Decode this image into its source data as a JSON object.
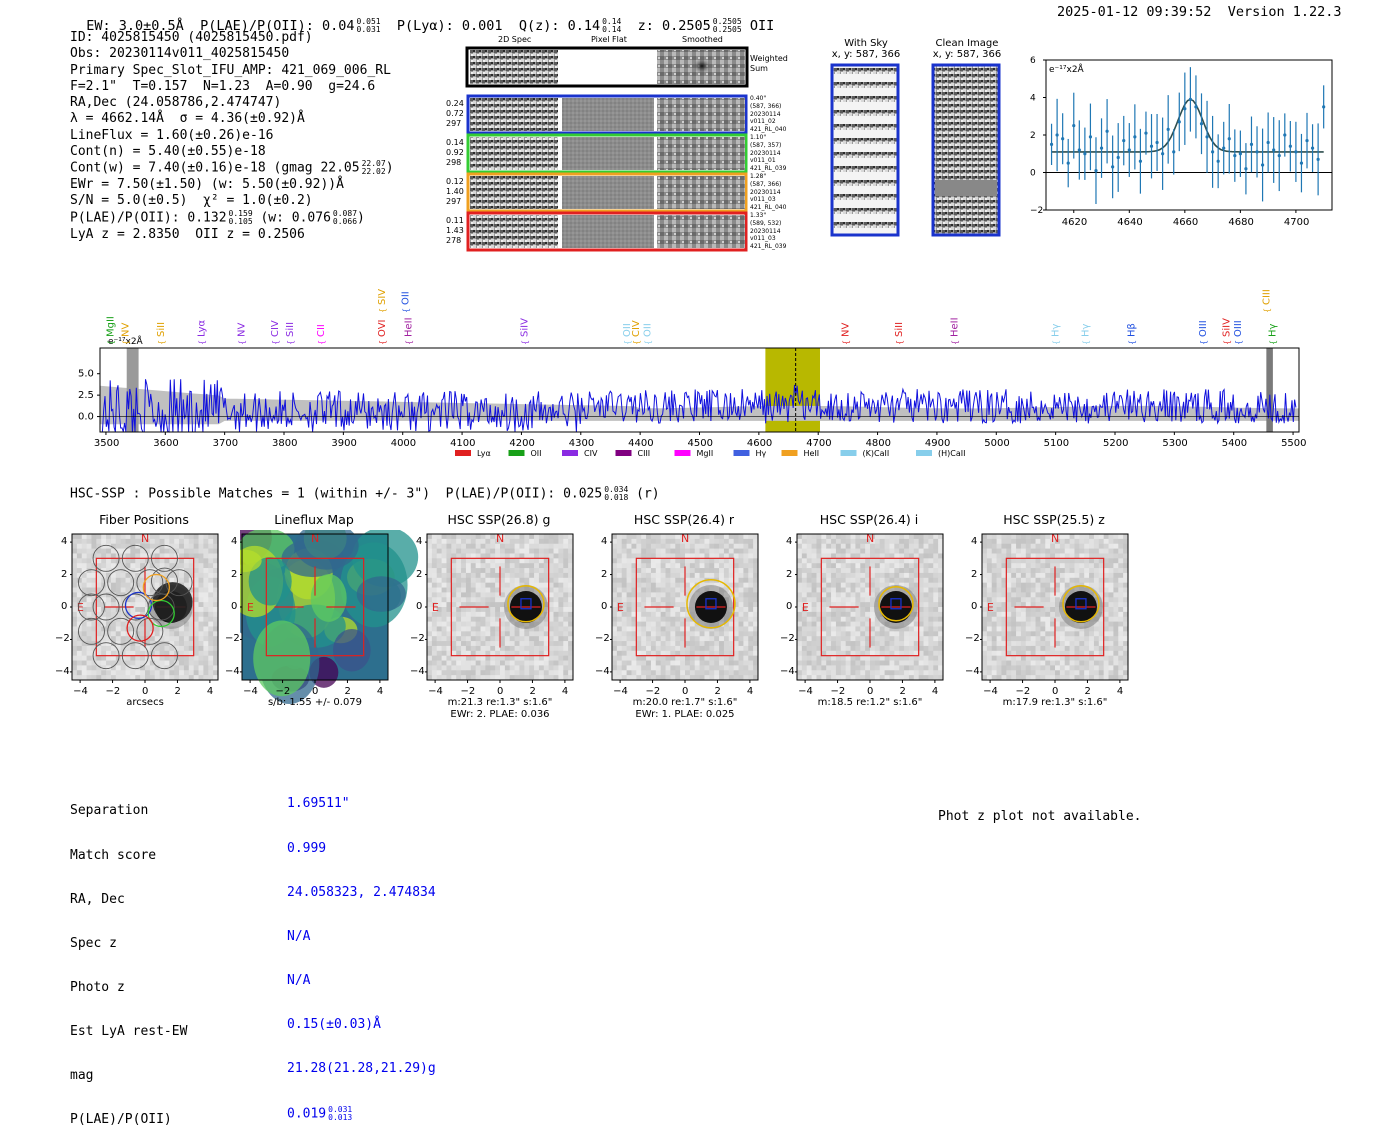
{
  "header": {
    "ew": "EW: 3.0±0.5Å",
    "plae_label": "P(LAE)/P(OII): 0.04",
    "plae_hi": "0.051",
    "plae_lo": "0.031",
    "plya": "P(Lyα): 0.001",
    "qz_label": "Q(z): 0.14",
    "qz_hi": "0.14",
    "qz_lo": "0.14",
    "z_label": "z: 0.2505",
    "z_hi": "0.2505",
    "z_lo": "0.2505",
    "z_line": "OII",
    "timestamp": "2025-01-12 09:39:52",
    "version": "Version 1.22.3"
  },
  "info": {
    "id": "ID: 4025815450 (4025815450.pdf)",
    "obs": "Obs: 20230114v011_4025815450",
    "primary": "Primary Spec_Slot_IFU_AMP: 421_069_006_RL",
    "fiber": "F=2.1\"  T=0.157  N=1.23  A=0.90  g=24.6",
    "radec": "RA,Dec (24.058786,2.474747)",
    "lambda": "λ = 4662.14Å  σ = 4.36(±0.92)Å",
    "lineflux": "LineFlux = 1.60(±0.26)e-16",
    "contn": "Cont(n) = 5.40(±0.55)e-18",
    "contw": "Cont(w) = 7.40(±0.16)e-18 (gmag 22.05",
    "contw_hi": "22.07",
    "contw_lo": "22.02",
    "ewr": "EWr = 7.50(±1.50) (w: 5.50(±0.92))Å",
    "sn": "S/N = 5.0(±0.5)  χ² = 1.0(±0.2)",
    "plae": "P(LAE)/P(OII): 0.132",
    "plae_hi": "0.159",
    "plae_lo": "0.105",
    "plae_w": "(w: 0.076",
    "plae_w_hi": "0.087",
    "plae_w_lo": "0.066",
    "lyaz": "LyA z = 2.8350  OII z = 0.2506"
  },
  "cutouts": {
    "col_2d": "2D Spec",
    "col_flat": "Pixel Flat",
    "col_smooth": "Smoothed",
    "weighted": "Weighted Sum",
    "rows": [
      {
        "left": [
          "0.24",
          "0.72",
          "297"
        ],
        "right": [
          "0.40\"",
          "(587, 366)",
          "20230114",
          "v011_02",
          "421_RL_040"
        ],
        "color": "#1a33cc"
      },
      {
        "left": [
          "0.14",
          "0.92",
          "298"
        ],
        "right": [
          "1.10\"",
          "(587, 357)",
          "20230114",
          "v011_01",
          "421_RL_039"
        ],
        "color": "#33cc33"
      },
      {
        "left": [
          "0.12",
          "1.40",
          "297"
        ],
        "right": [
          "1.28\"",
          "(587, 366)",
          "20230114",
          "v011_03",
          "421_RL_040"
        ],
        "color": "#f0a020"
      },
      {
        "left": [
          "0.11",
          "1.43",
          "278"
        ],
        "right": [
          "1.33\"",
          "(589, 532)",
          "20230114",
          "v011_03",
          "421_RL_039"
        ],
        "color": "#e02020"
      }
    ],
    "with_sky_title": "With Sky",
    "with_sky_xy": "x, y: 587, 366",
    "clean_title": "Clean Image",
    "clean_xy": "x, y: 587, 366"
  },
  "fit_plot": {
    "unit": "e⁻¹⁷x2Å",
    "x_ticks": [
      "4620",
      "4640",
      "4660",
      "4680",
      "4700"
    ],
    "y_ticks": [
      "6",
      "4",
      "2",
      "0",
      "−2"
    ],
    "data_x": [
      4612,
      4614,
      4616,
      4618,
      4620,
      4622,
      4624,
      4626,
      4628,
      4630,
      4632,
      4634,
      4636,
      4638,
      4640,
      4642,
      4644,
      4646,
      4648,
      4650,
      4652,
      4654,
      4656,
      4658,
      4660,
      4662,
      4664,
      4666,
      4668,
      4670,
      4672,
      4674,
      4676,
      4678,
      4680,
      4682,
      4684,
      4686,
      4688,
      4690,
      4692,
      4694,
      4696,
      4698,
      4700,
      4702,
      4704,
      4706,
      4708,
      4710
    ],
    "data_y": [
      1.5,
      2.0,
      1.8,
      0.5,
      2.5,
      1.2,
      1.0,
      1.9,
      0.1,
      1.3,
      2.2,
      0.3,
      0.8,
      1.7,
      1.2,
      1.9,
      0.6,
      2.1,
      1.4,
      1.6,
      1.0,
      2.3,
      1.1,
      2.7,
      3.4,
      3.9,
      3.5,
      2.6,
      1.9,
      1.1,
      0.6,
      1.3,
      1.8,
      0.9,
      1.0,
      0.2,
      1.5,
      1.1,
      0.4,
      1.6,
      1.2,
      0.9,
      2.0,
      1.4,
      1.1,
      0.5,
      1.7,
      1.3,
      0.7,
      3.5
    ],
    "xlim": [
      4610,
      4713
    ],
    "ylim": [
      -2,
      6
    ]
  },
  "spectrum": {
    "unit": "e⁻¹⁷x2Å",
    "x_ticks": [
      "3500",
      "3600",
      "3700",
      "3800",
      "3900",
      "4000",
      "4100",
      "4200",
      "4300",
      "4400",
      "4500",
      "4600",
      "4700",
      "4800",
      "4900",
      "5000",
      "5100",
      "5200",
      "5300",
      "5400",
      "5500"
    ],
    "y_ticks": [
      "5.0",
      "2.5",
      "0.0"
    ],
    "xlim": [
      3490,
      5510
    ],
    "ylim": [
      -1.8,
      8.0
    ],
    "lines": [
      {
        "name": "MgII",
        "x": 3508,
        "color": "#18a018",
        "row": 1
      },
      {
        "name": "NV",
        "x": 3533,
        "color": "#e0a000",
        "row": 1
      },
      {
        "name": "SiII",
        "x": 3593,
        "color": "#e0a000",
        "row": 1
      },
      {
        "name": "Lyα",
        "x": 3661,
        "color": "#8a2be2",
        "row": 1
      },
      {
        "name": "NV",
        "x": 3728,
        "color": "#8a2be2",
        "row": 1
      },
      {
        "name": "CIV",
        "x": 3785,
        "color": "#8a2be2",
        "row": 1
      },
      {
        "name": "SiII",
        "x": 3810,
        "color": "#8a2be2",
        "row": 1
      },
      {
        "name": "CII",
        "x": 3862,
        "color": "#ff00ff",
        "row": 1
      },
      {
        "name": "OVI",
        "x": 3965,
        "color": "#e02020",
        "row": 1
      },
      {
        "name": "SIV",
        "x": 3965,
        "color": "#e0a000",
        "row": 0
      },
      {
        "name": "OII",
        "x": 4005,
        "color": "#2050e0",
        "row": 0
      },
      {
        "name": "HeII",
        "x": 4010,
        "color": "#a020a0",
        "row": 1
      },
      {
        "name": "SiIV",
        "x": 4205,
        "color": "#8a2be2",
        "row": 1
      },
      {
        "name": "OII",
        "x": 4378,
        "color": "#87ceeb",
        "row": 1
      },
      {
        "name": "CIV",
        "x": 4393,
        "color": "#e0a000",
        "row": 1
      },
      {
        "name": "OII",
        "x": 4412,
        "color": "#87ceeb",
        "row": 1
      },
      {
        "name": "NV",
        "x": 4746,
        "color": "#e02020",
        "row": 1
      },
      {
        "name": "SiII",
        "x": 4836,
        "color": "#e02020",
        "row": 1
      },
      {
        "name": "HeII",
        "x": 4930,
        "color": "#a020a0",
        "row": 1
      },
      {
        "name": "Hγ",
        "x": 5100,
        "color": "#87ceeb",
        "row": 1
      },
      {
        "name": "Hγ",
        "x": 5150,
        "color": "#87ceeb",
        "row": 1
      },
      {
        "name": "Hβ",
        "x": 5228,
        "color": "#2050e0",
        "row": 1
      },
      {
        "name": "OIII",
        "x": 5348,
        "color": "#2050e0",
        "row": 1
      },
      {
        "name": "SiIV",
        "x": 5388,
        "color": "#e02020",
        "row": 1
      },
      {
        "name": "OIII",
        "x": 5407,
        "color": "#2050e0",
        "row": 1
      },
      {
        "name": "CIII",
        "x": 5455,
        "color": "#e0a000",
        "row": 0
      },
      {
        "name": "Hγ",
        "x": 5465,
        "color": "#18a018",
        "row": 1
      }
    ],
    "highlight": [
      4611,
      4703
    ],
    "marker": 4662,
    "legend": [
      {
        "label": "Lyα",
        "color": "#e02020"
      },
      {
        "label": "OII",
        "color": "#18a018"
      },
      {
        "label": "CIV",
        "color": "#8a2be2"
      },
      {
        "label": "CIII",
        "color": "#800080"
      },
      {
        "label": "MgII",
        "color": "#ff00ff"
      },
      {
        "label": "Hγ",
        "color": "#4060e0"
      },
      {
        "label": "HeII",
        "color": "#f0a020"
      },
      {
        "label": "(K)CaII",
        "color": "#87ceeb"
      },
      {
        "label": "(H)CaII",
        "color": "#87ceeb"
      }
    ]
  },
  "hsc": {
    "summary": "HSC-SSP : Possible Matches = 1 (within +/- 3\")  P(LAE)/P(OII): 0.025",
    "summary_hi": "0.034",
    "summary_lo": "0.018",
    "summary_band": "(r)",
    "panels": [
      {
        "title": "Fiber Positions",
        "xlabel": "arcsecs",
        "sub1": "",
        "sub2": "",
        "type": "fiber"
      },
      {
        "title": "Lineflux Map",
        "xlabel": "s/b: 1.55 +/- 0.079",
        "sub1": "",
        "sub2": "",
        "type": "flux"
      },
      {
        "title": "HSC SSP(26.8) g",
        "xlabel": "m:21.3  re:1.3\"  s:1.6\"",
        "sub1": "EWr: 2. PLAE: 0.036",
        "sub2": "",
        "type": "hsc",
        "radius": 18
      },
      {
        "title": "HSC SSP(26.4) r",
        "xlabel": "m:20.0  re:1.7\"  s:1.6\"",
        "sub1": "EWr: 1. PLAE: 0.025",
        "sub2": "",
        "type": "hsc",
        "radius": 24
      },
      {
        "title": "HSC SSP(26.4) i",
        "xlabel": "m:18.5  re:1.2\"  s:1.6\"",
        "sub1": "",
        "sub2": "",
        "type": "hsc",
        "radius": 17
      },
      {
        "title": "HSC SSP(25.5) z",
        "xlabel": "m:17.9  re:1.3\"  s:1.6\"",
        "sub1": "",
        "sub2": "",
        "type": "hsc",
        "radius": 18
      }
    ],
    "ticks": [
      "−4",
      "−2",
      "0",
      "2",
      "4"
    ],
    "n_label": "N",
    "e_label": "E"
  },
  "match": {
    "labels": [
      "Separation",
      "Match score",
      "RA, Dec",
      "Spec z",
      "Photo z",
      "Est LyA rest-EW",
      "mag",
      "P(LAE)/P(OII)"
    ],
    "values": [
      "1.69511\"",
      "0.999",
      "24.058323, 2.474834",
      "N/A",
      "N/A",
      "0.15(±0.03)Å",
      "21.28(21.28,21.29)g",
      "0.019"
    ],
    "plae_hi": "0.031",
    "plae_lo": "0.013",
    "photz_note": "Phot z plot not available."
  },
  "colors": {
    "spectrum_line": "#1010dd",
    "highlight": "#b8b800",
    "error_band": "#c0c0c0",
    "fit_points": "#1f77b4",
    "fit_model": "#2f4f4f",
    "value_blue": "#0000ee"
  }
}
